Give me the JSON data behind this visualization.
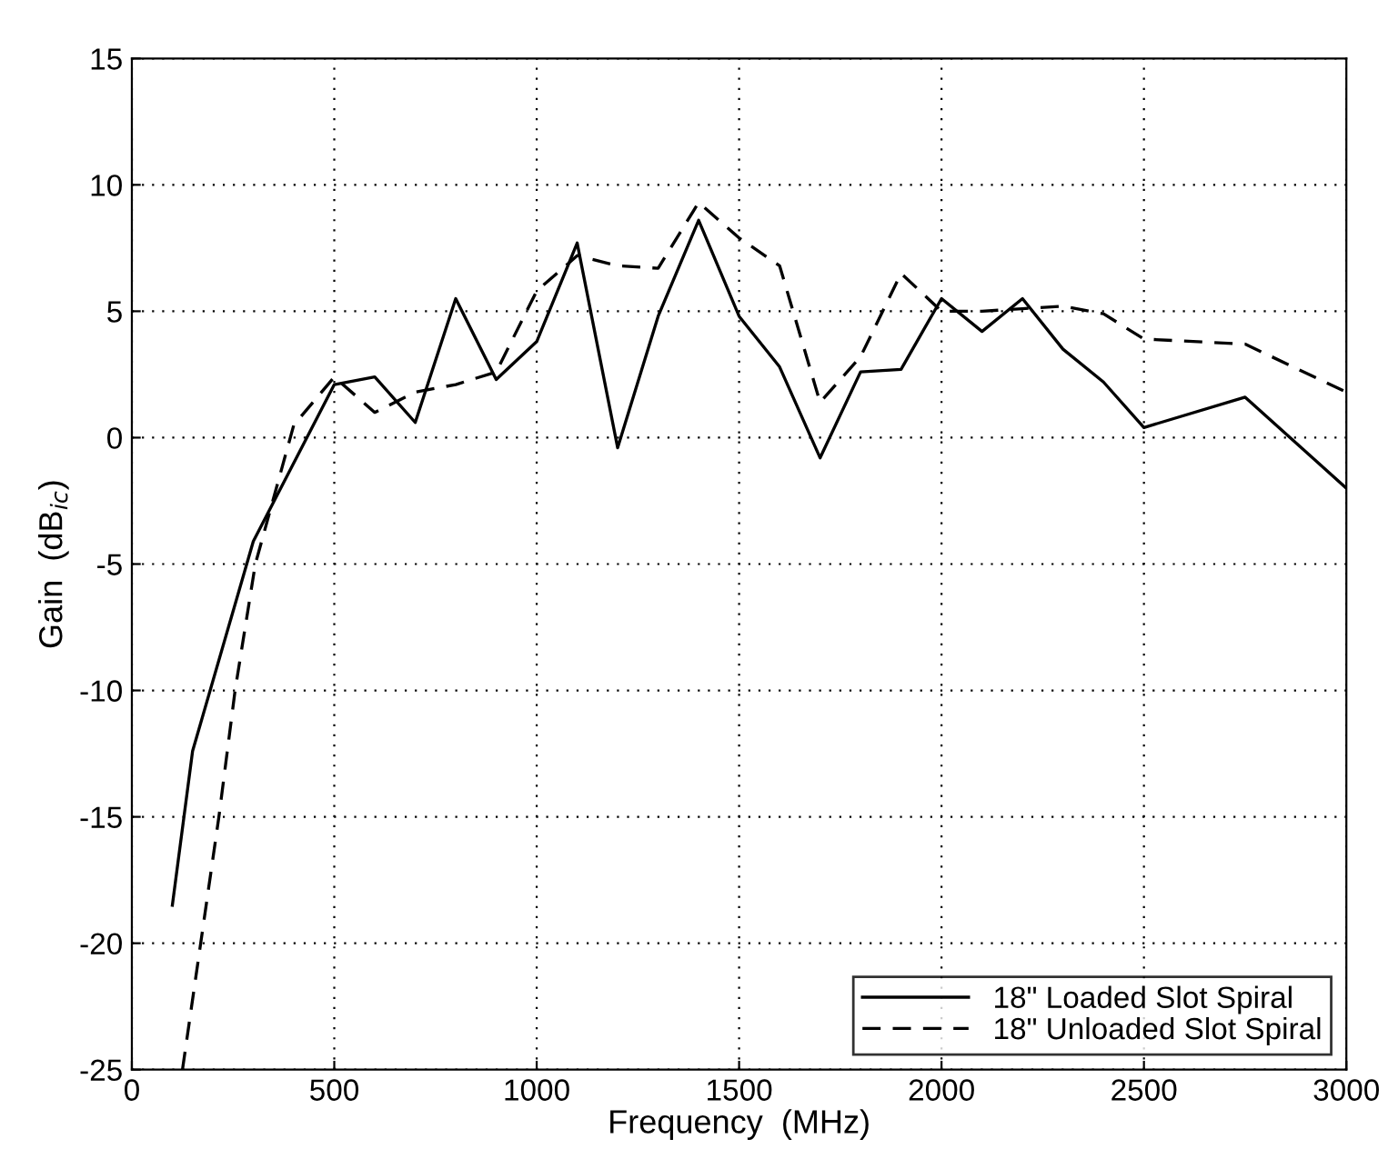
{
  "chart_data": {
    "type": "line",
    "xlabel": "Frequency  (MHz)",
    "ylabel": "Gain  (dB$_{ic}$)",
    "xlim": [
      0,
      3000
    ],
    "xticks": [
      0,
      500,
      1000,
      1500,
      2000,
      2500,
      3000
    ],
    "ylim": [
      -25,
      15
    ],
    "yticks": [
      -25,
      -20,
      -15,
      -10,
      -5,
      0,
      5,
      10,
      15
    ],
    "grid": true,
    "legend": "bottom right",
    "marker": "none",
    "series": [
      {
        "name": "18\" Loaded Slot Spiral",
        "color": "#000000",
        "line_style": "solid",
        "x": [
          100,
          150,
          300,
          400,
          500,
          600,
          700,
          800,
          900,
          1000,
          1100,
          1200,
          1300,
          1400,
          1500,
          1600,
          1700,
          1800,
          1900,
          2000,
          2100,
          2200,
          2300,
          2400,
          2500,
          2750,
          3000
        ],
        "values": [
          -18.5,
          -12.4,
          -4.1,
          -1,
          2.1,
          2.4,
          0.6,
          5.5,
          2.3,
          3.8,
          7.7,
          -0.4,
          4.8,
          8.6,
          4.8,
          2.8,
          -0.8,
          2.6,
          2.7,
          5.5,
          4.2,
          5.5,
          3.5,
          2.2,
          0.4,
          1.6,
          -2
        ]
      },
      {
        "name": "18\" Unloaded Slot Spiral",
        "color": "#000000",
        "line_style": "dashed",
        "x": [
          125,
          170,
          215,
          255,
          305,
          400,
          500,
          600,
          700,
          800,
          900,
          1000,
          1100,
          1200,
          1300,
          1400,
          1500,
          1600,
          1700,
          1800,
          1900,
          2000,
          2100,
          2200,
          2300,
          2400,
          2500,
          2750,
          3000
        ],
        "values": [
          -25,
          -20,
          -15,
          -10,
          -5,
          0.5,
          2.4,
          1.0,
          1.8,
          2.1,
          2.6,
          5.8,
          7.2,
          6.8,
          6.7,
          9.3,
          7.9,
          6.8,
          1.4,
          3.2,
          6.5,
          5.0,
          5.0,
          5.1,
          5.2,
          4.9,
          3.9,
          3.7,
          1.8
        ]
      }
    ]
  }
}
